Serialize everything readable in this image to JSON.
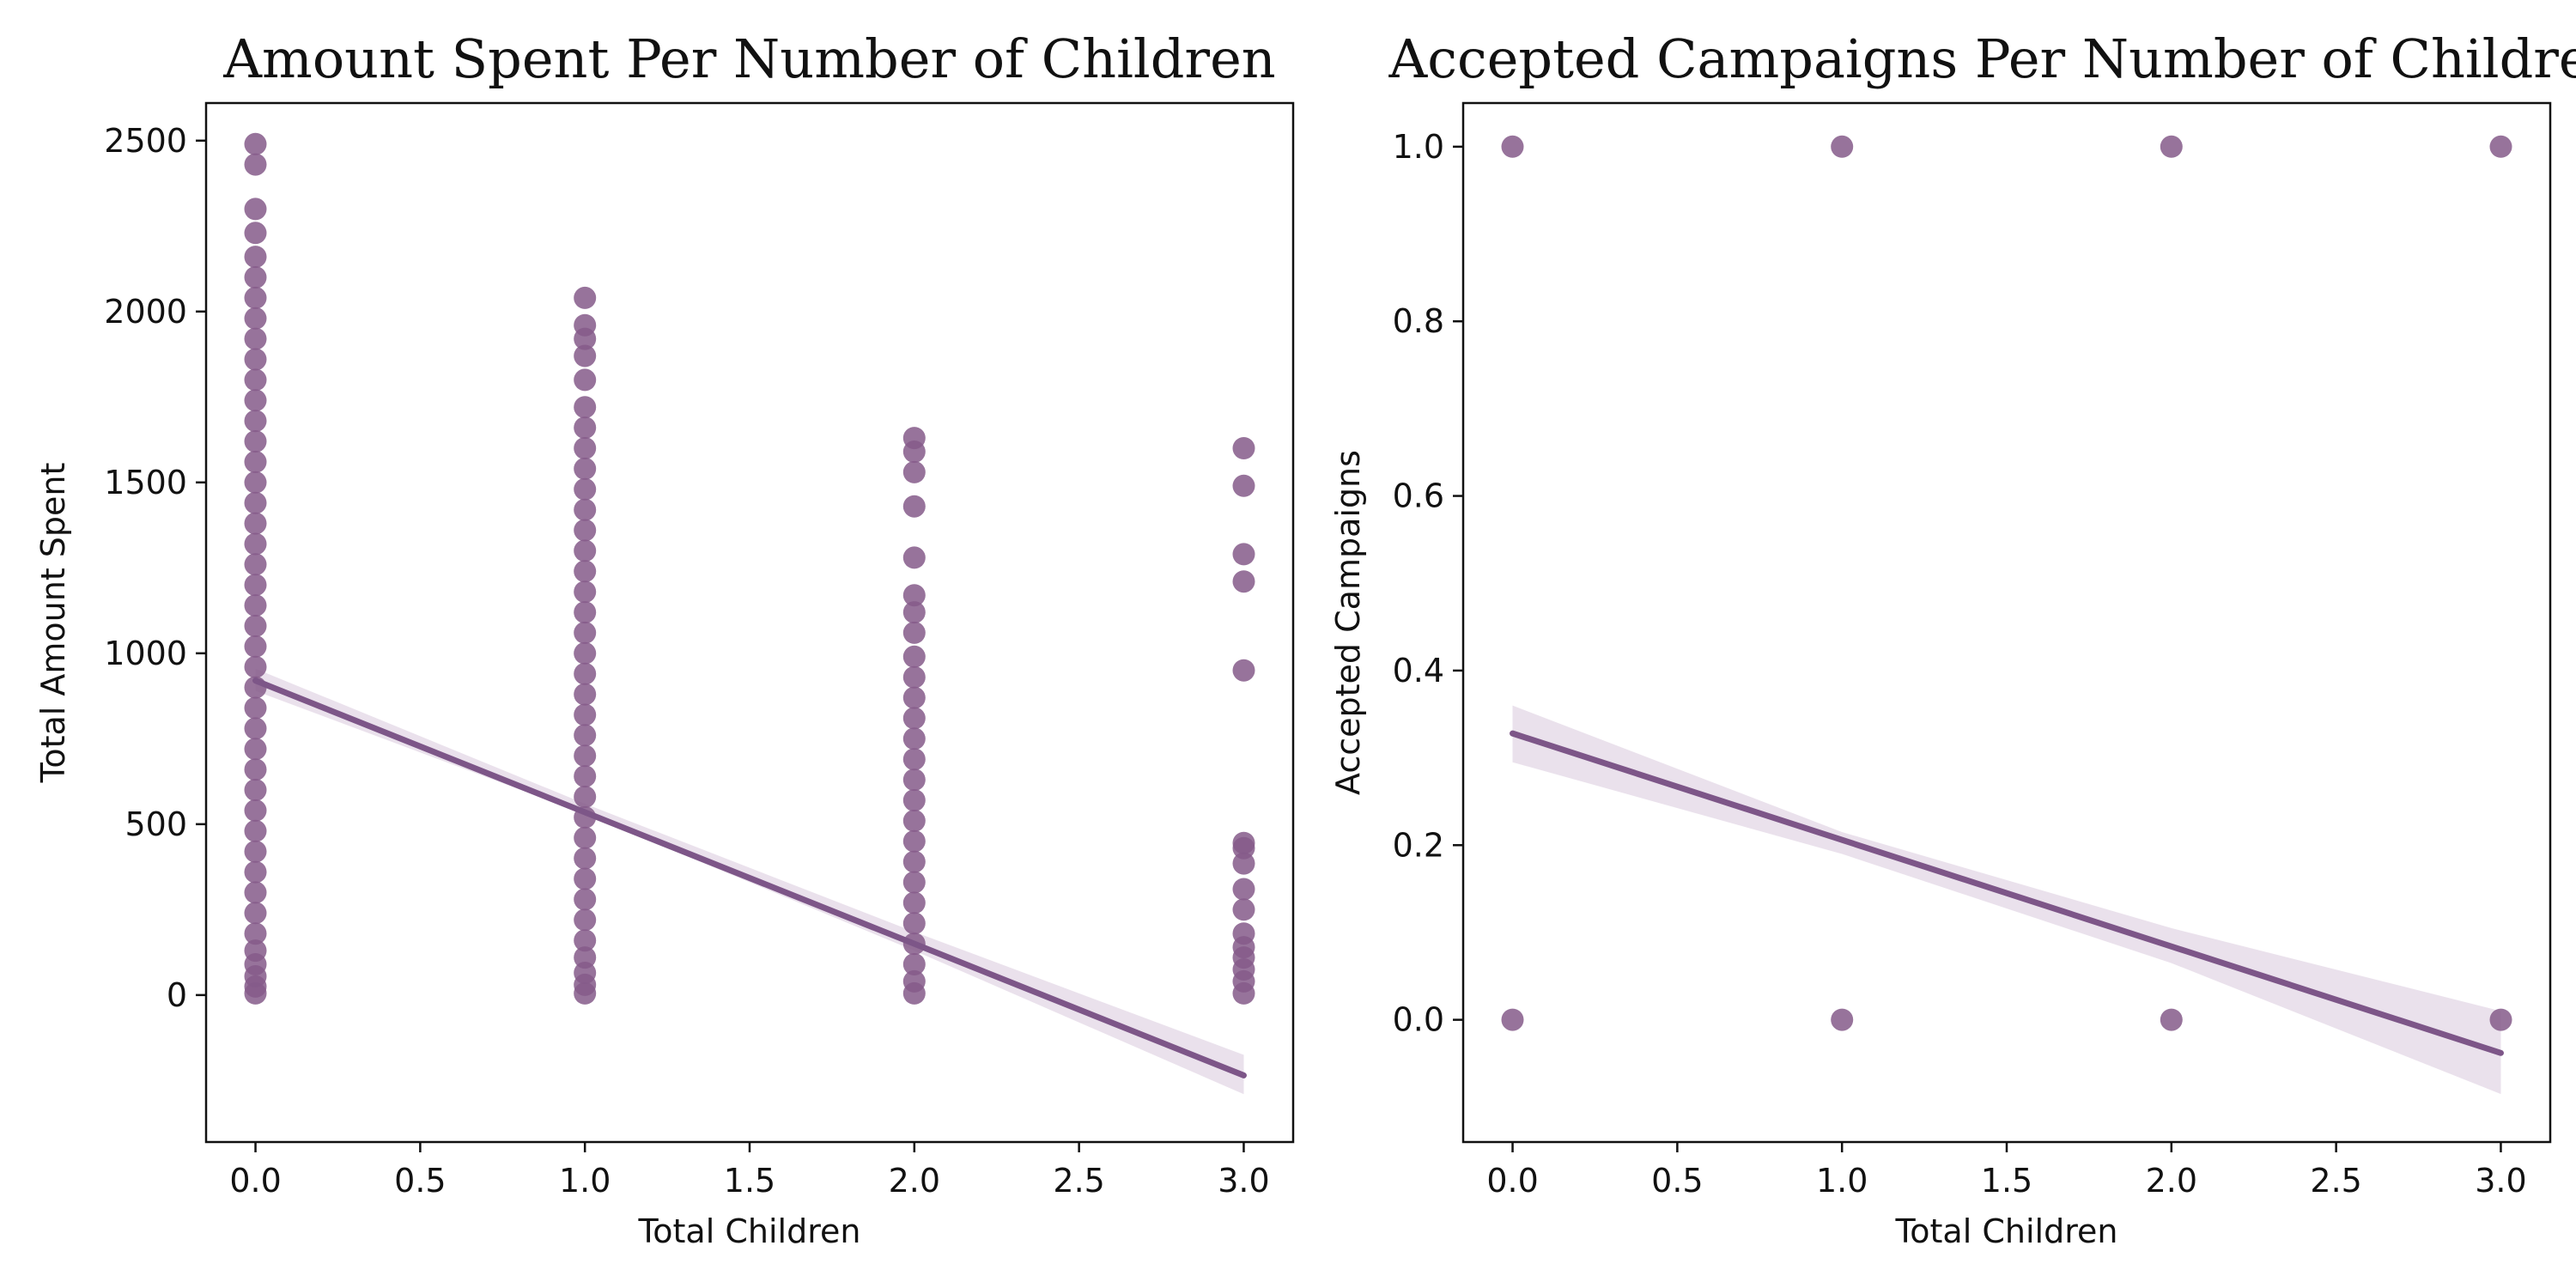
{
  "colors": {
    "points": "#855b8a",
    "line": "#7d5688",
    "band": "#e6dce9",
    "text": "#111111",
    "background": "#ffffff"
  },
  "chart_data": [
    {
      "type": "scatter",
      "title": "Amount Spent Per Number of Children",
      "xlabel": "Total Children",
      "ylabel": "Total Amount Spent",
      "xlim": [
        -0.15,
        3.15
      ],
      "ylim": [
        -430,
        2610
      ],
      "xticks": [
        0.0,
        0.5,
        1.0,
        1.5,
        2.0,
        2.5,
        3.0
      ],
      "xtick_labels": [
        "0.0",
        "0.5",
        "1.0",
        "1.5",
        "2.0",
        "2.5",
        "3.0"
      ],
      "yticks": [
        0,
        500,
        1000,
        1500,
        2000,
        2500
      ],
      "ytick_labels": [
        "0",
        "500",
        "1000",
        "1500",
        "2000",
        "2500"
      ],
      "grid": false,
      "legend": "none",
      "points": [
        {
          "x": 0,
          "y": 5
        },
        {
          "x": 0,
          "y": 25
        },
        {
          "x": 0,
          "y": 55
        },
        {
          "x": 0,
          "y": 90
        },
        {
          "x": 0,
          "y": 130
        },
        {
          "x": 0,
          "y": 180
        },
        {
          "x": 0,
          "y": 240
        },
        {
          "x": 0,
          "y": 300
        },
        {
          "x": 0,
          "y": 360
        },
        {
          "x": 0,
          "y": 420
        },
        {
          "x": 0,
          "y": 480
        },
        {
          "x": 0,
          "y": 540
        },
        {
          "x": 0,
          "y": 600
        },
        {
          "x": 0,
          "y": 660
        },
        {
          "x": 0,
          "y": 720
        },
        {
          "x": 0,
          "y": 780
        },
        {
          "x": 0,
          "y": 840
        },
        {
          "x": 0,
          "y": 900
        },
        {
          "x": 0,
          "y": 960
        },
        {
          "x": 0,
          "y": 1020
        },
        {
          "x": 0,
          "y": 1080
        },
        {
          "x": 0,
          "y": 1140
        },
        {
          "x": 0,
          "y": 1200
        },
        {
          "x": 0,
          "y": 1260
        },
        {
          "x": 0,
          "y": 1320
        },
        {
          "x": 0,
          "y": 1380
        },
        {
          "x": 0,
          "y": 1440
        },
        {
          "x": 0,
          "y": 1500
        },
        {
          "x": 0,
          "y": 1560
        },
        {
          "x": 0,
          "y": 1620
        },
        {
          "x": 0,
          "y": 1680
        },
        {
          "x": 0,
          "y": 1740
        },
        {
          "x": 0,
          "y": 1800
        },
        {
          "x": 0,
          "y": 1860
        },
        {
          "x": 0,
          "y": 1920
        },
        {
          "x": 0,
          "y": 1980
        },
        {
          "x": 0,
          "y": 2040
        },
        {
          "x": 0,
          "y": 2100
        },
        {
          "x": 0,
          "y": 2160
        },
        {
          "x": 0,
          "y": 2230
        },
        {
          "x": 0,
          "y": 2300
        },
        {
          "x": 0,
          "y": 2430
        },
        {
          "x": 0,
          "y": 2490
        },
        {
          "x": 1,
          "y": 5
        },
        {
          "x": 1,
          "y": 30
        },
        {
          "x": 1,
          "y": 65
        },
        {
          "x": 1,
          "y": 110
        },
        {
          "x": 1,
          "y": 160
        },
        {
          "x": 1,
          "y": 220
        },
        {
          "x": 1,
          "y": 280
        },
        {
          "x": 1,
          "y": 340
        },
        {
          "x": 1,
          "y": 400
        },
        {
          "x": 1,
          "y": 460
        },
        {
          "x": 1,
          "y": 520
        },
        {
          "x": 1,
          "y": 580
        },
        {
          "x": 1,
          "y": 640
        },
        {
          "x": 1,
          "y": 700
        },
        {
          "x": 1,
          "y": 760
        },
        {
          "x": 1,
          "y": 820
        },
        {
          "x": 1,
          "y": 880
        },
        {
          "x": 1,
          "y": 940
        },
        {
          "x": 1,
          "y": 1000
        },
        {
          "x": 1,
          "y": 1060
        },
        {
          "x": 1,
          "y": 1120
        },
        {
          "x": 1,
          "y": 1180
        },
        {
          "x": 1,
          "y": 1240
        },
        {
          "x": 1,
          "y": 1300
        },
        {
          "x": 1,
          "y": 1360
        },
        {
          "x": 1,
          "y": 1420
        },
        {
          "x": 1,
          "y": 1480
        },
        {
          "x": 1,
          "y": 1540
        },
        {
          "x": 1,
          "y": 1600
        },
        {
          "x": 1,
          "y": 1660
        },
        {
          "x": 1,
          "y": 1720
        },
        {
          "x": 1,
          "y": 1800
        },
        {
          "x": 1,
          "y": 1870
        },
        {
          "x": 1,
          "y": 1920
        },
        {
          "x": 1,
          "y": 1960
        },
        {
          "x": 1,
          "y": 2040
        },
        {
          "x": 2,
          "y": 5
        },
        {
          "x": 2,
          "y": 40
        },
        {
          "x": 2,
          "y": 90
        },
        {
          "x": 2,
          "y": 150
        },
        {
          "x": 2,
          "y": 210
        },
        {
          "x": 2,
          "y": 270
        },
        {
          "x": 2,
          "y": 330
        },
        {
          "x": 2,
          "y": 390
        },
        {
          "x": 2,
          "y": 450
        },
        {
          "x": 2,
          "y": 510
        },
        {
          "x": 2,
          "y": 570
        },
        {
          "x": 2,
          "y": 630
        },
        {
          "x": 2,
          "y": 690
        },
        {
          "x": 2,
          "y": 750
        },
        {
          "x": 2,
          "y": 810
        },
        {
          "x": 2,
          "y": 870
        },
        {
          "x": 2,
          "y": 930
        },
        {
          "x": 2,
          "y": 990
        },
        {
          "x": 2,
          "y": 1060
        },
        {
          "x": 2,
          "y": 1120
        },
        {
          "x": 2,
          "y": 1170
        },
        {
          "x": 2,
          "y": 1280
        },
        {
          "x": 2,
          "y": 1430
        },
        {
          "x": 2,
          "y": 1530
        },
        {
          "x": 2,
          "y": 1590
        },
        {
          "x": 2,
          "y": 1630
        },
        {
          "x": 3,
          "y": 5
        },
        {
          "x": 3,
          "y": 40
        },
        {
          "x": 3,
          "y": 75
        },
        {
          "x": 3,
          "y": 110
        },
        {
          "x": 3,
          "y": 140
        },
        {
          "x": 3,
          "y": 180
        },
        {
          "x": 3,
          "y": 250
        },
        {
          "x": 3,
          "y": 310
        },
        {
          "x": 3,
          "y": 385
        },
        {
          "x": 3,
          "y": 430
        },
        {
          "x": 3,
          "y": 445
        },
        {
          "x": 3,
          "y": 950
        },
        {
          "x": 3,
          "y": 1210
        },
        {
          "x": 3,
          "y": 1290
        },
        {
          "x": 3,
          "y": 1490
        },
        {
          "x": 3,
          "y": 1600
        }
      ],
      "regression": {
        "x": [
          0,
          3
        ],
        "y": [
          920,
          -235
        ]
      },
      "confidence_band": {
        "x": [
          0,
          1,
          2,
          3
        ],
        "upper": [
          955,
          560,
          185,
          -175
        ],
        "lower": [
          890,
          530,
          130,
          -290
        ]
      }
    },
    {
      "type": "scatter",
      "title": "Accepted Campaigns Per Number of Children",
      "xlabel": "Total Children",
      "ylabel": "Accepted Campaigns",
      "xlim": [
        -0.15,
        3.15
      ],
      "ylim": [
        -0.14,
        1.05
      ],
      "xticks": [
        0.0,
        0.5,
        1.0,
        1.5,
        2.0,
        2.5,
        3.0
      ],
      "xtick_labels": [
        "0.0",
        "0.5",
        "1.0",
        "1.5",
        "2.0",
        "2.5",
        "3.0"
      ],
      "yticks": [
        0.0,
        0.2,
        0.4,
        0.6,
        0.8,
        1.0
      ],
      "ytick_labels": [
        "0.0",
        "0.2",
        "0.4",
        "0.6",
        "0.8",
        "1.0"
      ],
      "grid": false,
      "legend": "none",
      "points": [
        {
          "x": 0,
          "y": 0
        },
        {
          "x": 0,
          "y": 1
        },
        {
          "x": 1,
          "y": 0
        },
        {
          "x": 1,
          "y": 1
        },
        {
          "x": 2,
          "y": 0
        },
        {
          "x": 2,
          "y": 1
        },
        {
          "x": 3,
          "y": 0
        },
        {
          "x": 3,
          "y": 1
        }
      ],
      "regression": {
        "x": [
          0,
          3
        ],
        "y": [
          0.328,
          -0.038
        ]
      },
      "confidence_band": {
        "x": [
          0,
          1,
          2,
          3
        ],
        "upper": [
          0.36,
          0.215,
          0.105,
          0.01
        ],
        "lower": [
          0.295,
          0.19,
          0.065,
          -0.085
        ]
      }
    }
  ]
}
